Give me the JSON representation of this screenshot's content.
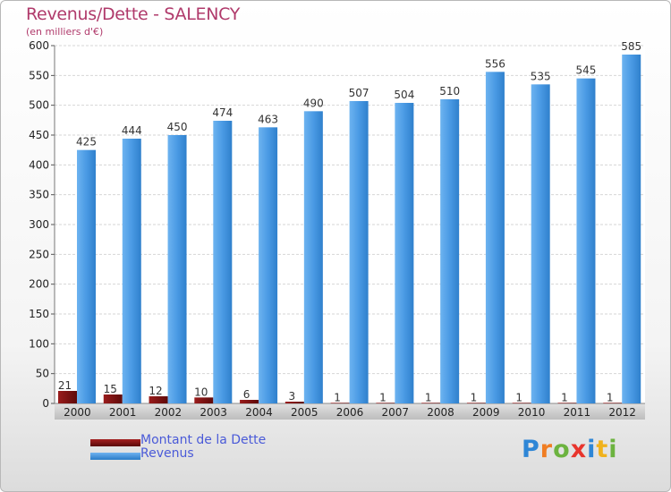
{
  "chart_data": {
    "type": "bar",
    "title": "Revenus/Dette - SALENCY",
    "subtitle": "(en milliers d'€)",
    "categories": [
      "2000",
      "2001",
      "2002",
      "2003",
      "2004",
      "2005",
      "2006",
      "2007",
      "2008",
      "2009",
      "2010",
      "2011",
      "2012"
    ],
    "series": [
      {
        "name": "Montant de la Dette",
        "color": "#7a1010",
        "values": [
          21,
          15,
          12,
          10,
          6,
          3,
          1,
          1,
          1,
          1,
          1,
          1,
          1
        ]
      },
      {
        "name": "Revenus",
        "color": "#3d8fdc",
        "values": [
          425,
          444,
          450,
          474,
          463,
          490,
          507,
          504,
          510,
          556,
          535,
          545,
          585
        ]
      }
    ],
    "ylim": [
      0,
      600
    ],
    "yticks": [
      0,
      50,
      100,
      150,
      200,
      250,
      300,
      350,
      400,
      450,
      500,
      550,
      600
    ],
    "grid": true,
    "legend_position": "bottom-left"
  },
  "logo": {
    "letters": [
      {
        "ch": "P",
        "color": "#2e86d6"
      },
      {
        "ch": "r",
        "color": "#f07d22"
      },
      {
        "ch": "o",
        "color": "#6cb33f"
      },
      {
        "ch": "x",
        "color": "#e8352d"
      },
      {
        "ch": "i",
        "color": "#2e86d6"
      },
      {
        "ch": "t",
        "color": "#f0b21d"
      },
      {
        "ch": "i",
        "color": "#6cb33f"
      }
    ]
  }
}
